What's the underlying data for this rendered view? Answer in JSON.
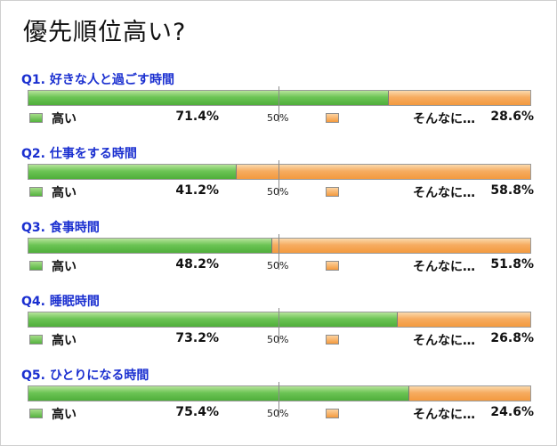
{
  "title": "優先順位高い?",
  "legend": {
    "high": "高い",
    "low": "そんなに…",
    "mid": "50%",
    "high_color": "#5cb946",
    "low_color": "#f49a3e"
  },
  "chart_data": {
    "type": "bar",
    "stacked": true,
    "orientation": "horizontal",
    "title": "優先順位高い?",
    "categories": [
      "Q1. 好きな人と過ごす時間",
      "Q2. 仕事をする時間",
      "Q3. 食事時間",
      "Q4. 睡眠時間",
      "Q5. ひとりになる時間"
    ],
    "series": [
      {
        "name": "高い",
        "values": [
          71.4,
          41.2,
          48.2,
          73.2,
          75.4
        ]
      },
      {
        "name": "そんなに…",
        "values": [
          28.6,
          58.8,
          51.8,
          26.8,
          24.6
        ]
      }
    ],
    "labels_high": [
      "71.4%",
      "41.2%",
      "48.2%",
      "73.2%",
      "75.4%"
    ],
    "labels_low": [
      "28.6%",
      "58.8%",
      "51.8%",
      "26.8%",
      "24.6%"
    ],
    "xlim": [
      0,
      100
    ],
    "midline": 50
  }
}
